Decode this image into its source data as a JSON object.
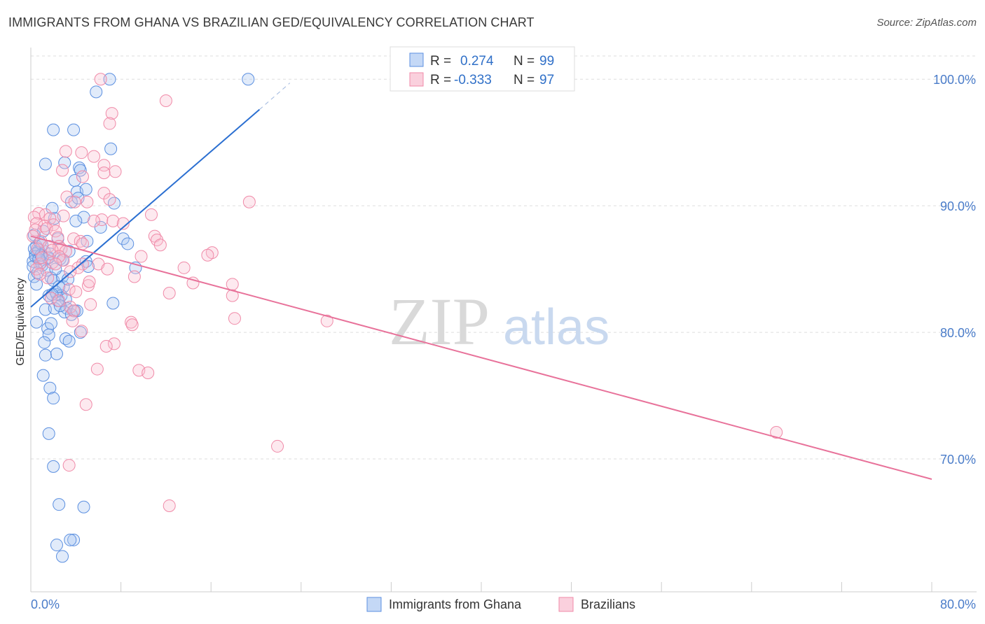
{
  "title": "IMMIGRANTS FROM GHANA VS BRAZILIAN GED/EQUIVALENCY CORRELATION CHART",
  "source": "Source: ZipAtlas.com",
  "watermark": {
    "zip": "ZIP",
    "atlas": "atlas"
  },
  "legend": {
    "rows": [
      {
        "r_label": "R =",
        "r_value": "0.274",
        "n_label": "N =",
        "n_value": "99"
      },
      {
        "r_label": "R =",
        "r_value": "-0.333",
        "n_label": "N =",
        "n_value": "97"
      }
    ]
  },
  "chart_data": {
    "type": "scatter",
    "title": "IMMIGRANTS FROM GHANA VS BRAZILIAN GED/EQUIVALENCY CORRELATION CHART",
    "xlabel": "",
    "ylabel": "GED/Equivalency",
    "xlim": [
      0,
      80
    ],
    "ylim": [
      59.5,
      102.5
    ],
    "x_tick_labels": [
      "0.0%",
      "80.0%"
    ],
    "y_ticks": [
      70,
      80,
      90,
      100
    ],
    "y_tick_labels": [
      "70.0%",
      "80.0%",
      "90.0%",
      "100.0%"
    ],
    "grid": true,
    "colors": {
      "ghana": "#5b8fe0",
      "brazil": "#f08aa8",
      "ghana_line": "#2b6fd1",
      "brazil_line": "#e8729a"
    },
    "series": [
      {
        "name": "Immigrants from Ghana",
        "trend": {
          "x": [
            0,
            20.3
          ],
          "y": [
            82.0,
            97.6
          ],
          "dashed_to": [
            23.0,
            99.7
          ]
        },
        "points": [
          [
            7.0,
            100.0
          ],
          [
            19.3,
            100.0
          ],
          [
            5.8,
            99.0
          ],
          [
            2.0,
            96.0
          ],
          [
            3.8,
            96.0
          ],
          [
            7.1,
            94.5
          ],
          [
            1.3,
            93.3
          ],
          [
            4.3,
            93.0
          ],
          [
            3.0,
            93.4
          ],
          [
            4.4,
            92.8
          ],
          [
            3.9,
            92.0
          ],
          [
            4.1,
            91.1
          ],
          [
            4.9,
            91.3
          ],
          [
            3.6,
            90.3
          ],
          [
            4.2,
            90.6
          ],
          [
            7.4,
            90.2
          ],
          [
            1.9,
            89.8
          ],
          [
            2.1,
            89.0
          ],
          [
            4.7,
            89.1
          ],
          [
            4.0,
            88.8
          ],
          [
            6.2,
            88.3
          ],
          [
            1.1,
            88.0
          ],
          [
            0.3,
            87.7
          ],
          [
            2.4,
            87.4
          ],
          [
            8.2,
            87.4
          ],
          [
            8.6,
            87.0
          ],
          [
            5.0,
            87.2
          ],
          [
            0.5,
            86.8
          ],
          [
            0.7,
            86.5
          ],
          [
            0.4,
            86.2
          ],
          [
            1.2,
            86.4
          ],
          [
            1.6,
            85.9
          ],
          [
            2.6,
            85.8
          ],
          [
            0.2,
            85.6
          ],
          [
            0.9,
            85.5
          ],
          [
            4.9,
            85.6
          ],
          [
            5.1,
            85.2
          ],
          [
            9.3,
            85.1
          ],
          [
            0.3,
            84.4
          ],
          [
            1.8,
            84.3
          ],
          [
            2.0,
            84.1
          ],
          [
            2.8,
            84.4
          ],
          [
            0.5,
            83.8
          ],
          [
            2.9,
            83.6
          ],
          [
            1.6,
            82.9
          ],
          [
            2.3,
            83.0
          ],
          [
            2.7,
            82.9
          ],
          [
            3.1,
            82.6
          ],
          [
            2.4,
            82.5
          ],
          [
            7.3,
            82.3
          ],
          [
            1.3,
            81.8
          ],
          [
            2.1,
            81.9
          ],
          [
            3.2,
            81.9
          ],
          [
            3.0,
            81.6
          ],
          [
            3.9,
            81.7
          ],
          [
            3.6,
            81.4
          ],
          [
            0.5,
            80.8
          ],
          [
            1.5,
            80.3
          ],
          [
            1.8,
            80.7
          ],
          [
            4.4,
            80.0
          ],
          [
            1.6,
            79.8
          ],
          [
            3.1,
            79.5
          ],
          [
            1.2,
            79.2
          ],
          [
            3.4,
            79.3
          ],
          [
            1.3,
            78.2
          ],
          [
            2.3,
            78.3
          ],
          [
            1.1,
            76.6
          ],
          [
            1.7,
            75.6
          ],
          [
            2.0,
            74.8
          ],
          [
            1.6,
            72.0
          ],
          [
            2.0,
            69.4
          ],
          [
            2.5,
            66.4
          ],
          [
            4.7,
            66.2
          ],
          [
            3.8,
            63.6
          ],
          [
            3.5,
            63.6
          ],
          [
            2.3,
            63.2
          ],
          [
            2.8,
            62.3
          ],
          [
            0.6,
            86.3
          ],
          [
            1.0,
            85.3
          ],
          [
            0.8,
            87.1
          ],
          [
            0.2,
            85.2
          ],
          [
            0.6,
            84.7
          ],
          [
            1.5,
            85.9
          ],
          [
            1.0,
            86.9
          ],
          [
            0.4,
            86.0
          ],
          [
            0.7,
            85.8
          ],
          [
            2.2,
            83.2
          ],
          [
            2.5,
            83.6
          ],
          [
            3.3,
            84.2
          ],
          [
            1.9,
            83.0
          ],
          [
            2.6,
            82.1
          ],
          [
            4.1,
            81.7
          ],
          [
            0.9,
            86.1
          ],
          [
            1.4,
            84.9
          ],
          [
            2.2,
            85.0
          ],
          [
            3.4,
            86.4
          ],
          [
            0.3,
            86.6
          ],
          [
            1.7,
            86.2
          ],
          [
            2.8,
            85.7
          ]
        ]
      },
      {
        "name": "Brazilians",
        "trend": {
          "x": [
            0,
            80
          ],
          "y": [
            87.6,
            68.4
          ]
        },
        "points": [
          [
            6.2,
            100.0
          ],
          [
            12.0,
            98.3
          ],
          [
            7.2,
            97.3
          ],
          [
            7.0,
            96.5
          ],
          [
            3.1,
            94.3
          ],
          [
            4.5,
            94.2
          ],
          [
            5.6,
            93.9
          ],
          [
            6.5,
            93.2
          ],
          [
            7.5,
            92.7
          ],
          [
            4.6,
            92.3
          ],
          [
            6.5,
            92.6
          ],
          [
            2.8,
            92.8
          ],
          [
            3.2,
            90.7
          ],
          [
            6.5,
            91.0
          ],
          [
            7.0,
            90.5
          ],
          [
            3.9,
            90.3
          ],
          [
            5.0,
            90.3
          ],
          [
            19.4,
            90.3
          ],
          [
            0.7,
            89.4
          ],
          [
            1.3,
            89.3
          ],
          [
            2.9,
            89.2
          ],
          [
            10.7,
            89.3
          ],
          [
            0.3,
            89.1
          ],
          [
            1.7,
            89.0
          ],
          [
            6.3,
            88.9
          ],
          [
            0.5,
            88.6
          ],
          [
            1.2,
            88.4
          ],
          [
            2.0,
            88.5
          ],
          [
            5.6,
            88.8
          ],
          [
            7.3,
            88.8
          ],
          [
            8.2,
            88.6
          ],
          [
            0.4,
            88.1
          ],
          [
            1.4,
            88.2
          ],
          [
            2.2,
            88.0
          ],
          [
            0.2,
            87.6
          ],
          [
            2.4,
            87.5
          ],
          [
            3.8,
            87.4
          ],
          [
            11.0,
            87.6
          ],
          [
            0.9,
            87.2
          ],
          [
            4.4,
            87.2
          ],
          [
            4.6,
            87.0
          ],
          [
            11.2,
            87.3
          ],
          [
            1.6,
            86.8
          ],
          [
            2.5,
            86.8
          ],
          [
            2.7,
            86.6
          ],
          [
            11.5,
            86.9
          ],
          [
            16.1,
            86.3
          ],
          [
            0.6,
            86.6
          ],
          [
            1.9,
            86.5
          ],
          [
            3.1,
            86.4
          ],
          [
            15.7,
            86.1
          ],
          [
            9.8,
            86.0
          ],
          [
            2.9,
            85.7
          ],
          [
            4.6,
            85.4
          ],
          [
            6.0,
            85.4
          ],
          [
            4.2,
            85.1
          ],
          [
            6.8,
            85.0
          ],
          [
            13.6,
            85.1
          ],
          [
            0.8,
            85.4
          ],
          [
            1.9,
            85.5
          ],
          [
            9.2,
            84.4
          ],
          [
            14.4,
            83.9
          ],
          [
            17.9,
            83.8
          ],
          [
            5.1,
            83.7
          ],
          [
            3.4,
            83.4
          ],
          [
            12.3,
            83.1
          ],
          [
            17.9,
            82.9
          ],
          [
            1.8,
            82.7
          ],
          [
            2.5,
            82.5
          ],
          [
            5.3,
            82.2
          ],
          [
            3.5,
            82.0
          ],
          [
            3.8,
            81.7
          ],
          [
            18.1,
            81.1
          ],
          [
            26.3,
            80.9
          ],
          [
            8.9,
            80.8
          ],
          [
            9.0,
            80.6
          ],
          [
            3.7,
            80.9
          ],
          [
            4.5,
            80.1
          ],
          [
            7.4,
            79.1
          ],
          [
            6.7,
            78.9
          ],
          [
            5.9,
            77.1
          ],
          [
            9.6,
            77.0
          ],
          [
            10.4,
            76.8
          ],
          [
            4.9,
            74.3
          ],
          [
            66.2,
            72.1
          ],
          [
            21.9,
            71.0
          ],
          [
            3.4,
            69.5
          ],
          [
            12.3,
            66.3
          ],
          [
            2.5,
            86.0
          ],
          [
            1.0,
            85.9
          ],
          [
            0.5,
            85.0
          ],
          [
            1.5,
            84.3
          ],
          [
            2.2,
            85.4
          ],
          [
            3.5,
            84.8
          ],
          [
            5.2,
            84.0
          ],
          [
            0.8,
            84.6
          ],
          [
            4.0,
            83.2
          ]
        ]
      }
    ]
  }
}
